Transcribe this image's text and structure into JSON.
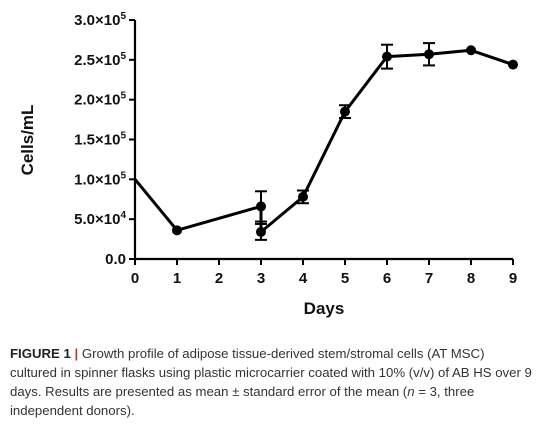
{
  "chart_data": {
    "type": "line",
    "xlabel": "Days",
    "ylabel": "Cells/mL",
    "xlim": [
      0,
      9
    ],
    "ylim": [
      0,
      300000
    ],
    "x_ticks": [
      "0",
      "1",
      "2",
      "3",
      "4",
      "5",
      "6",
      "7",
      "8",
      "9"
    ],
    "y_ticks": [
      {
        "value": 0,
        "label": "0.0"
      },
      {
        "value": 50000,
        "label": "5.0×10",
        "exp": "4"
      },
      {
        "value": 100000,
        "label": "1.0×10",
        "exp": "5"
      },
      {
        "value": 150000,
        "label": "1.5×10",
        "exp": "5"
      },
      {
        "value": 200000,
        "label": "2.0×10",
        "exp": "5"
      },
      {
        "value": 250000,
        "label": "2.5×10",
        "exp": "5"
      },
      {
        "value": 300000,
        "label": "3.0×10",
        "exp": "5"
      }
    ],
    "series": [
      {
        "color": "#000000",
        "points": [
          {
            "x": 0,
            "y": 100000,
            "err": null,
            "marker": false
          },
          {
            "x": 1,
            "y": 36000,
            "err": null,
            "marker": true
          },
          {
            "x": 3,
            "y": 66000,
            "err": 19000,
            "marker": true
          },
          {
            "x": 3,
            "y": 34000,
            "err": 10000,
            "marker": true
          },
          {
            "x": 4,
            "y": 78000,
            "err": 8000,
            "marker": true
          },
          {
            "x": 5,
            "y": 185000,
            "err": 8000,
            "marker": true
          },
          {
            "x": 6,
            "y": 254000,
            "err": 15000,
            "marker": true
          },
          {
            "x": 7,
            "y": 257000,
            "err": 14000,
            "marker": true
          },
          {
            "x": 8,
            "y": 262000,
            "err": null,
            "marker": true
          },
          {
            "x": 9,
            "y": 244000,
            "err": null,
            "marker": true
          }
        ],
        "line_order": [
          0,
          1,
          2,
          3,
          4,
          5,
          6,
          7,
          8,
          9
        ]
      }
    ],
    "grid": false,
    "legend": "none"
  },
  "caption": {
    "label": "FIGURE 1",
    "separator": "|",
    "text_1": "Growth profile of adipose tissue-derived stem/stromal cells (AT MSC) cultured in spinner flasks using plastic microcarrier coated with 10% (v/v) of AB HS over 9 days. Results are presented as mean ± standard error of the mean (",
    "n_symbol": "n",
    "text_2": " = 3, three independent donors)."
  }
}
